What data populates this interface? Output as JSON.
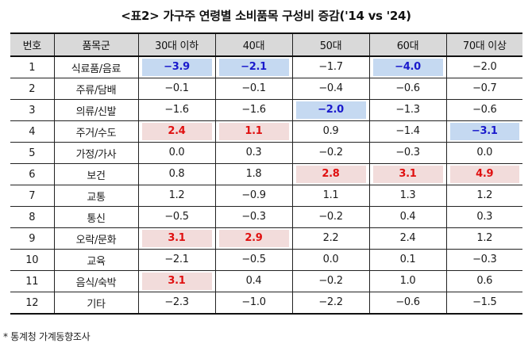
{
  "title": "<표2> 가구주 연령별 소비품목 구성비 증감('14 vs '24)",
  "table": {
    "headers": [
      "번호",
      "품목군",
      "30대 이하",
      "40대",
      "50대",
      "60대",
      "70대 이상"
    ],
    "rows": [
      {
        "no": "1",
        "item": "식료품/음료",
        "values": [
          "−3.9",
          "−2.1",
          "−1.7",
          "−4.0",
          "−2.0"
        ],
        "highlight": [
          "neg",
          "neg",
          "",
          "neg",
          ""
        ]
      },
      {
        "no": "2",
        "item": "주류/담배",
        "values": [
          "−0.1",
          "−0.1",
          "−0.4",
          "−0.6",
          "−0.7"
        ],
        "highlight": [
          "",
          "",
          "",
          "",
          ""
        ]
      },
      {
        "no": "3",
        "item": "의류/신발",
        "values": [
          "−1.6",
          "−1.6",
          "−2.0",
          "−1.3",
          "−0.6"
        ],
        "highlight": [
          "",
          "",
          "neg",
          "",
          ""
        ]
      },
      {
        "no": "4",
        "item": "주거/수도",
        "values": [
          "2.4",
          "1.1",
          "0.9",
          "−1.4",
          "−3.1"
        ],
        "highlight": [
          "pos",
          "pos",
          "",
          "",
          "neg"
        ]
      },
      {
        "no": "5",
        "item": "가정/가사",
        "values": [
          "0.0",
          "0.3",
          "−0.2",
          "−0.3",
          "0.0"
        ],
        "highlight": [
          "",
          "",
          "",
          "",
          ""
        ]
      },
      {
        "no": "6",
        "item": "보건",
        "values": [
          "0.8",
          "1.8",
          "2.8",
          "3.1",
          "4.9"
        ],
        "highlight": [
          "",
          "",
          "pos",
          "pos",
          "pos"
        ]
      },
      {
        "no": "7",
        "item": "교통",
        "values": [
          "1.2",
          "−0.9",
          "1.1",
          "1.3",
          "1.2"
        ],
        "highlight": [
          "",
          "",
          "",
          "",
          ""
        ]
      },
      {
        "no": "8",
        "item": "통신",
        "values": [
          "−0.5",
          "−0.3",
          "−0.2",
          "0.4",
          "0.3"
        ],
        "highlight": [
          "",
          "",
          "",
          "",
          ""
        ]
      },
      {
        "no": "9",
        "item": "오락/문화",
        "values": [
          "3.1",
          "2.9",
          "2.2",
          "2.4",
          "1.2"
        ],
        "highlight": [
          "pos",
          "pos",
          "",
          "",
          ""
        ]
      },
      {
        "no": "10",
        "item": "교육",
        "values": [
          "−2.1",
          "−0.5",
          "0.0",
          "0.1",
          "−0.3"
        ],
        "highlight": [
          "",
          "",
          "",
          "",
          ""
        ]
      },
      {
        "no": "11",
        "item": "음식/숙박",
        "values": [
          "3.1",
          "0.4",
          "−0.2",
          "1.0",
          "0.6"
        ],
        "highlight": [
          "pos",
          "",
          "",
          "",
          ""
        ]
      },
      {
        "no": "12",
        "item": "기타",
        "values": [
          "−2.3",
          "−1.0",
          "−2.2",
          "−0.6",
          "−1.5"
        ],
        "highlight": [
          "",
          "",
          "",
          "",
          ""
        ]
      }
    ]
  },
  "colors": {
    "highlight_negative_bg": "#c5d9f1",
    "highlight_negative_text": "#1a1acc",
    "highlight_positive_bg": "#f2dcdb",
    "highlight_positive_text": "#e01010",
    "header_bg": "#d9d9d9"
  },
  "note": "* 통계청 가계동향조사"
}
